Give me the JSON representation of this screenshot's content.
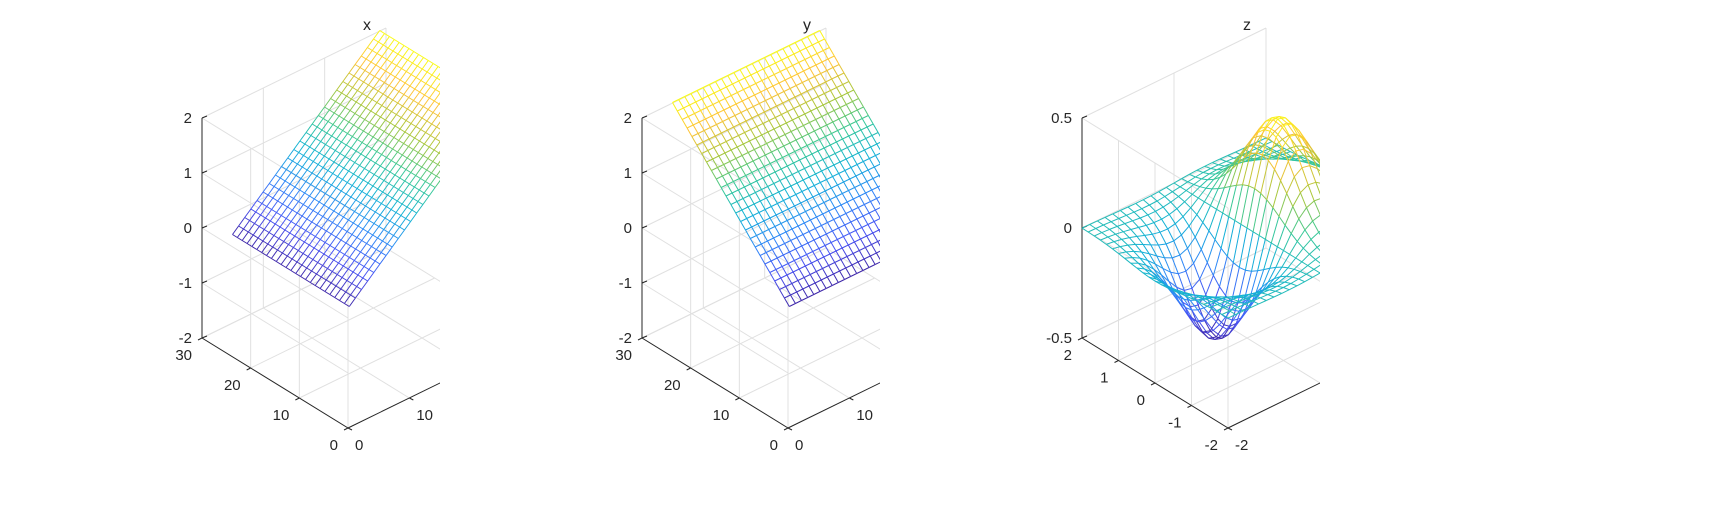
{
  "figure": {
    "background": "#ffffff"
  },
  "chart_data": [
    {
      "type": "mesh3d",
      "title": "x",
      "surface": "z = x",
      "x_range": [
        1,
        25
      ],
      "y_range": [
        1,
        25
      ],
      "grid_size": [
        25,
        25
      ],
      "xlim": [
        0,
        30
      ],
      "ylim": [
        0,
        30
      ],
      "zlim": [
        -2,
        2
      ],
      "z_display_scale": 0.1,
      "x_ticks": [
        "0",
        "10",
        "20",
        "30"
      ],
      "y_ticks": [
        "0",
        "10",
        "20",
        "30"
      ],
      "z_ticks": [
        "-2",
        "-1",
        "0",
        "1",
        "2"
      ],
      "colormap": "parula",
      "grid": true,
      "box": false
    },
    {
      "type": "mesh3d",
      "title": "y",
      "surface": "z = y",
      "x_range": [
        1,
        25
      ],
      "y_range": [
        1,
        25
      ],
      "grid_size": [
        25,
        25
      ],
      "xlim": [
        0,
        30
      ],
      "ylim": [
        0,
        30
      ],
      "zlim": [
        -2,
        2
      ],
      "z_display_scale": 0.1,
      "x_ticks": [
        "0",
        "10",
        "20",
        "30"
      ],
      "y_ticks": [
        "0",
        "10",
        "20",
        "30"
      ],
      "z_ticks": [
        "-2",
        "-1",
        "0",
        "1",
        "2"
      ],
      "colormap": "parula",
      "grid": true,
      "box": false
    },
    {
      "type": "mesh3d",
      "title": "z",
      "surface": "z = x*exp(-x^2 - y^2)",
      "x_range": [
        -2,
        2
      ],
      "y_range": [
        -2,
        2
      ],
      "grid_size": [
        25,
        25
      ],
      "xlim": [
        -2,
        2
      ],
      "ylim": [
        -2,
        2
      ],
      "zlim": [
        -0.5,
        0.5
      ],
      "z_display_scale": 1,
      "x_ticks": [
        "-2",
        "0",
        "2"
      ],
      "y_ticks": [
        "-2",
        "-1",
        "0",
        "1",
        "2"
      ],
      "z_ticks": [
        "-0.5",
        "0",
        "0.5"
      ],
      "colormap": "parula",
      "grid": true,
      "box": false
    }
  ]
}
